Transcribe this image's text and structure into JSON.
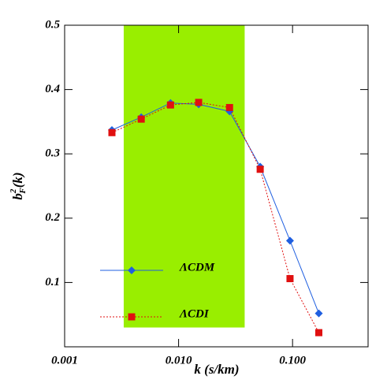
{
  "chart_data": {
    "type": "line",
    "xlabel": "k (s/km)",
    "ylabel": {
      "base": "b",
      "sup": "2",
      "sub": "F",
      "arg": "(k)"
    },
    "xscale": "log",
    "xlim": [
      0.001,
      0.46
    ],
    "ylim": [
      0,
      0.5
    ],
    "xticks": [
      {
        "value": 0.001,
        "label": "0.001"
      },
      {
        "value": 0.01,
        "label": "0.010"
      },
      {
        "value": 0.1,
        "label": "0.100"
      }
    ],
    "yticks": [
      0.1,
      0.2,
      0.3,
      0.4,
      0.5
    ],
    "band": {
      "x": [
        0.0033,
        0.038
      ],
      "y": [
        0.03,
        0.5
      ],
      "color": "#99ee00"
    },
    "legend": "lower left",
    "series": [
      {
        "name": "ΛCDM",
        "color": "#1f5fe0",
        "marker": "diamond",
        "dash": false,
        "x": [
          0.0026,
          0.0047,
          0.0085,
          0.015,
          0.028,
          0.052,
          0.095,
          0.17
        ],
        "values": [
          0.337,
          0.357,
          0.379,
          0.377,
          0.366,
          0.28,
          0.165,
          0.052
        ]
      },
      {
        "name": "ΛCDI",
        "color": "#e01010",
        "marker": "square",
        "dash": true,
        "x": [
          0.0026,
          0.0047,
          0.0085,
          0.015,
          0.028,
          0.052,
          0.095,
          0.17
        ],
        "values": [
          0.333,
          0.354,
          0.376,
          0.38,
          0.372,
          0.276,
          0.106,
          0.022
        ]
      }
    ]
  }
}
